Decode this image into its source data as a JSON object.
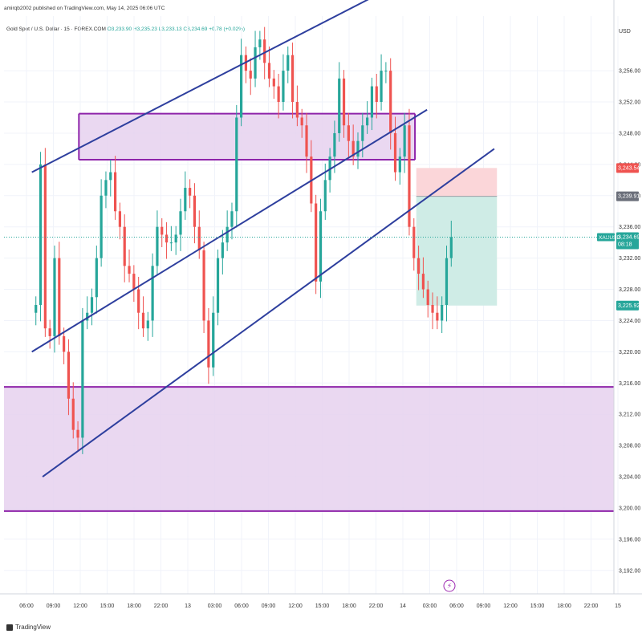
{
  "header": {
    "publish_text": "amirqb2002 published on TradingView.com, May 14, 2025 06:06 UTC"
  },
  "legend": {
    "symbol": "Gold Spot / U.S. Dollar · 15 · FOREX.COM",
    "ohlc": "O3,233.90 H3,235.23 L3,233.13 C3,234.69 +0.78 (+0.02%)"
  },
  "currency": "USD",
  "footer": {
    "brand": "TradingView"
  },
  "colors": {
    "up": "#26a69a",
    "down": "#ef5350",
    "channel": "#2e3f9e",
    "zone_fill": "#e6d1ee",
    "zone_border": "#8e24aa",
    "stop_fill": "#fbd6d9",
    "target_fill": "#cfece6",
    "grid": "#f0f3fa",
    "price_label": "#ef5350",
    "entry_label": "#6b6f7a",
    "current_label": "#26a69a"
  },
  "chart_data": {
    "type": "candlestick",
    "symbol": "XAUUSD",
    "timeframe": "15",
    "ylim": [
      3189,
      3263
    ],
    "y_ticks": [
      3192,
      3196,
      3200,
      3204,
      3208,
      3212,
      3216,
      3220,
      3224,
      3228,
      3232,
      3236,
      3240,
      3244,
      3248,
      3252,
      3256
    ],
    "x_ticks": [
      "06:00",
      "09:00",
      "12:00",
      "15:00",
      "18:00",
      "22:00",
      "13",
      "03:00",
      "06:00",
      "09:00",
      "12:00",
      "15:00",
      "18:00",
      "22:00",
      "14",
      "03:00",
      "06:00",
      "09:00",
      "12:00",
      "15:00",
      "18:00",
      "22:00",
      "15"
    ],
    "candle_closes": [
      3226,
      3244,
      3223,
      3222,
      3232,
      3222,
      3220,
      3214,
      3210,
      3209,
      3224,
      3225,
      3227,
      3232,
      3240,
      3242,
      3243,
      3238,
      3236,
      3231,
      3230,
      3228,
      3225,
      3223,
      3224,
      3231,
      3236,
      3235,
      3234,
      3234,
      3235,
      3238,
      3241,
      3240,
      3236,
      3233,
      3224,
      3218,
      3225,
      3232,
      3234,
      3236,
      3238,
      3250,
      3258,
      3256,
      3255,
      3259,
      3260,
      3257,
      3255,
      3254,
      3252,
      3256,
      3258,
      3252,
      3250,
      3249,
      3245,
      3239,
      3229,
      3238,
      3242,
      3245,
      3248,
      3255,
      3249,
      3247,
      3245,
      3247,
      3249,
      3250,
      3254,
      3252,
      3256,
      3256,
      3248,
      3243,
      3245,
      3249,
      3236,
      3232,
      3230,
      3228,
      3226,
      3225,
      3224,
      3226,
      3232,
      3234.69
    ],
    "series": [
      {
        "name": "Channel upper",
        "x_from": 0.2,
        "y_from": 3243,
        "x_to": 14.9,
        "y_to": 3269
      },
      {
        "name": "Channel middle",
        "x_from": 0.2,
        "y_from": 3220,
        "x_to": 14.9,
        "y_to": 3251
      },
      {
        "name": "Channel lower",
        "x_from": 0.6,
        "y_from": 3204,
        "x_to": 17.4,
        "y_to": 3246
      }
    ],
    "zones": [
      {
        "name": "Supply zone",
        "top": 3250.5,
        "bottom": 3244.6,
        "x_from": 1.95,
        "x_to": 14.45
      },
      {
        "name": "Demand zone",
        "top": 3215.5,
        "bottom": 3199.6,
        "x_from": 0,
        "x_to": 21
      }
    ],
    "position": {
      "stop": 3243.54,
      "entry": 3239.91,
      "target": 3225.92,
      "x_from": 14.5,
      "x_to": 17.5
    },
    "current_price": 3234.69,
    "labels": {
      "symbol_tag": "XAUUSD",
      "price": "3,234.69",
      "countdown": "08:18",
      "stop": "3,243.54",
      "entry": "3,239.91",
      "target": "3,225.92"
    }
  }
}
